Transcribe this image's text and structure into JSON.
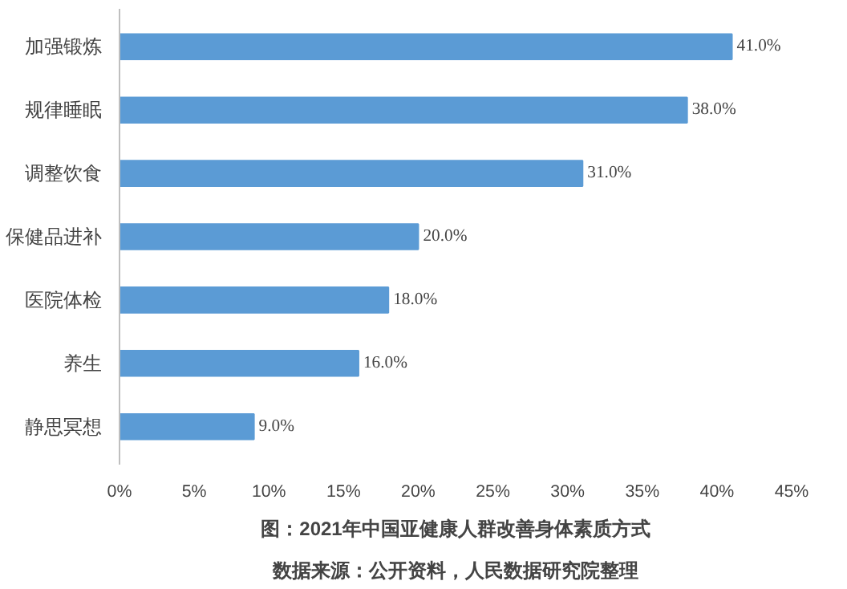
{
  "chart_data": {
    "type": "bar",
    "orientation": "horizontal",
    "title": "图：2021年中国亚健康人群改善身体素质方式",
    "categories": [
      "加强锻炼",
      "规律睡眠",
      "调整饮食",
      "保健品进补",
      "医院体检",
      "养生",
      "静思冥想"
    ],
    "values": [
      41,
      38,
      31,
      20,
      18,
      16,
      9
    ],
    "value_labels": [
      "41.0%",
      "38.0%",
      "31.0%",
      "20.0%",
      "18.0%",
      "16.0%",
      "9.0%"
    ],
    "color": "#5b9bd5",
    "xlim": [
      0,
      45
    ],
    "xticks": [
      {
        "value": 0,
        "label": "0%"
      },
      {
        "value": 5,
        "label": "5%"
      },
      {
        "value": 10,
        "label": "10%"
      },
      {
        "value": 15,
        "label": "15%"
      },
      {
        "value": 20,
        "label": "20%"
      },
      {
        "value": 25,
        "label": "25%"
      },
      {
        "value": 30,
        "label": "30%"
      },
      {
        "value": 35,
        "label": "35%"
      },
      {
        "value": 40,
        "label": "40%"
      },
      {
        "value": 45,
        "label": "45%"
      }
    ],
    "grid": false,
    "annotations": [
      "数据来源：公开资料，人民数据研究院整理"
    ]
  }
}
